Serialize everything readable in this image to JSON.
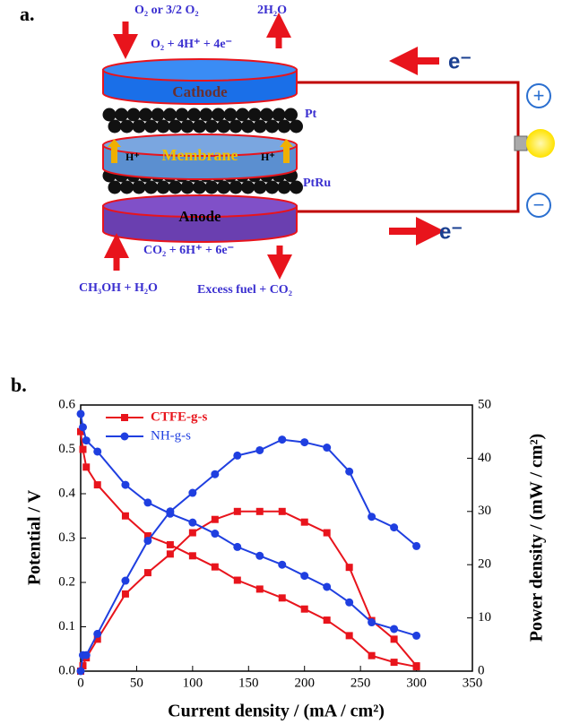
{
  "figure": {
    "panel_a_label": "a.",
    "panel_b_label": "b."
  },
  "diagram": {
    "cathode_in": "O₂ or 3/2 O₂",
    "cathode_out": "2H₂O",
    "cathode_reaction": "O₂ + 4H⁺ + 4e⁻",
    "cathode": "Cathode",
    "pt": "Pt",
    "membrane": "Membrane",
    "proton_left": "H⁺",
    "proton_right": "H⁺",
    "ptru": "PtRu",
    "anode": "Anode",
    "anode_reaction": "CO₂ + 6H⁺ + 6e⁻",
    "anode_in": "CH₃OH + H₂O",
    "anode_out": "Excess fuel + CO₂",
    "electron_top": "e⁻",
    "electron_bottom": "e⁻",
    "plus": "+",
    "minus": "−"
  },
  "chart_data": {
    "type": "line",
    "xlabel": "Current density / (mA / cm²)",
    "ylabel": "Potential / V",
    "y2label": "Power density / (mW / cm²)",
    "x": [
      0,
      2,
      5,
      15,
      40,
      60,
      80,
      100,
      120,
      140,
      160,
      180,
      200,
      220,
      240,
      260,
      280,
      300
    ],
    "xlim": [
      0,
      350
    ],
    "xticks": [
      0,
      50,
      100,
      150,
      200,
      250,
      300,
      350
    ],
    "ylim": [
      0,
      0.6
    ],
    "yticks": [
      {
        "value": 0,
        "label": "0.0"
      },
      0.1,
      0.2,
      0.3,
      0.4,
      0.5,
      0.6
    ],
    "y2lim": [
      0,
      50
    ],
    "y2ticks": [
      0,
      10,
      20,
      30,
      40,
      50
    ],
    "legend": "upper left",
    "series": [
      {
        "name": "CTFE-g-s",
        "color": "#e8141c",
        "marker": "square",
        "values": [
          0.54,
          0.5,
          0.46,
          0.42,
          0.35,
          0.305,
          0.285,
          0.26,
          0.235,
          0.205,
          0.185,
          0.165,
          0.14,
          0.115,
          0.08,
          0.035,
          0.02,
          0.01
        ],
        "power": [
          0,
          1,
          2.5,
          6,
          14.5,
          18.5,
          22,
          26,
          28.5,
          30,
          30,
          30,
          28,
          26,
          19.5,
          9.5,
          6,
          1
        ]
      },
      {
        "name": "NH-g-s",
        "color": "#1f3fe0",
        "marker": "circle",
        "values": [
          0.58,
          0.55,
          0.52,
          0.495,
          0.42,
          0.38,
          0.355,
          0.335,
          0.31,
          0.28,
          0.26,
          0.24,
          0.215,
          0.19,
          0.155,
          0.11,
          0.095,
          0.08
        ],
        "power": [
          0,
          3,
          3,
          7,
          17,
          24.5,
          30,
          33.5,
          37,
          40.5,
          41.5,
          43.5,
          43,
          42,
          37.5,
          29,
          27,
          23.5
        ]
      }
    ]
  }
}
